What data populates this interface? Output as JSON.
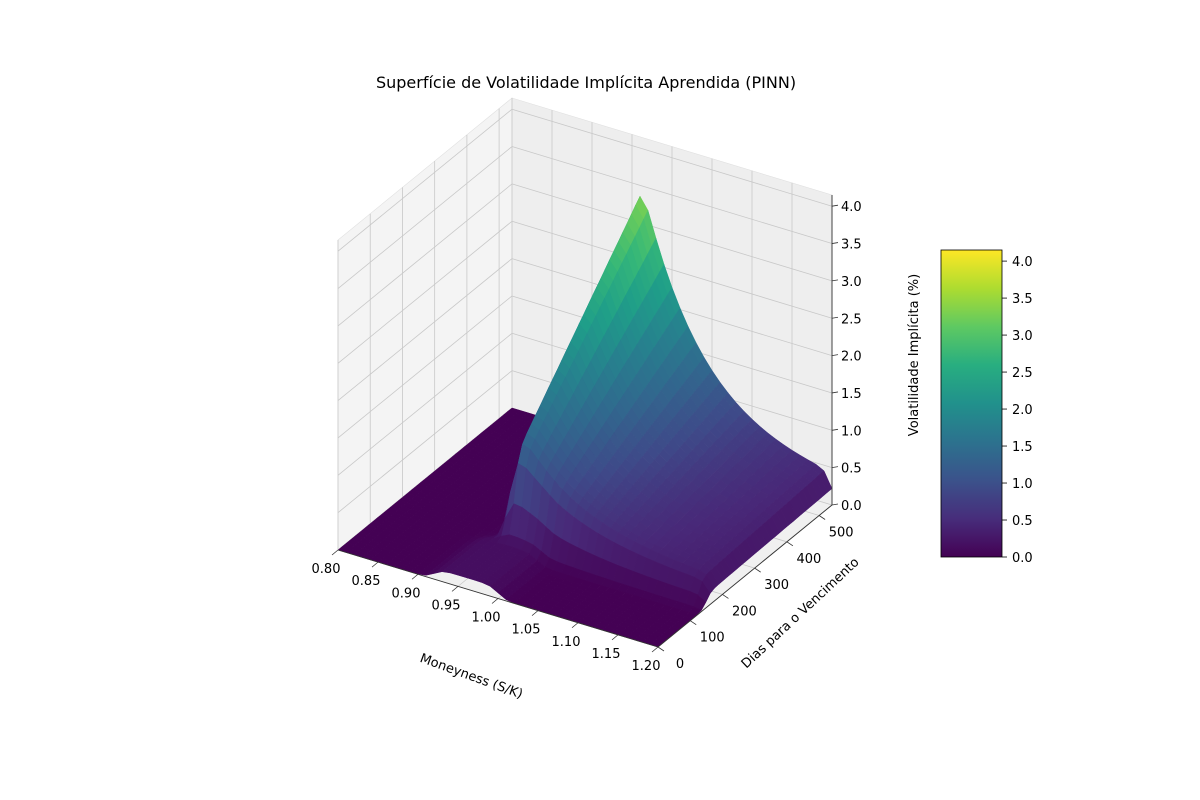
{
  "chart_data": {
    "type": "surface",
    "title": "Superfície de Volatilidade Implícita Aprendida (PINN)",
    "xlabel": "Moneyness (S/K)",
    "ylabel": "Dias para o Vencimento",
    "zlabel": "Volatilidade Implícita (%)",
    "x_ticks": [
      "0.80",
      "0.85",
      "0.90",
      "0.95",
      "1.00",
      "1.05",
      "1.10",
      "1.15",
      "1.20"
    ],
    "y_ticks": [
      "0",
      "100",
      "200",
      "300",
      "400",
      "500"
    ],
    "z_ticks": [
      "0.0",
      "0.5",
      "1.0",
      "1.5",
      "2.0",
      "2.5",
      "3.0",
      "3.5",
      "4.0"
    ],
    "colorbar_ticks": [
      "0.0",
      "0.5",
      "1.0",
      "1.5",
      "2.0",
      "2.5",
      "3.0",
      "3.5",
      "4.0"
    ],
    "xlim": [
      0.8,
      1.2
    ],
    "ylim": [
      0,
      540
    ],
    "zlim": [
      0,
      4.15
    ],
    "colormap": "viridis",
    "grid": true,
    "surface_peaks": {
      "main_ridge": {
        "moneyness_range": [
          0.95,
          1.2
        ],
        "days_start": 150,
        "max_iv": 4.1,
        "max_at": {
          "moneyness": 0.95,
          "days": 540
        }
      },
      "small_bump": {
        "moneyness_range": [
          0.92,
          1.0
        ],
        "days_range": [
          0,
          150
        ],
        "max_iv": 0.15
      }
    }
  }
}
